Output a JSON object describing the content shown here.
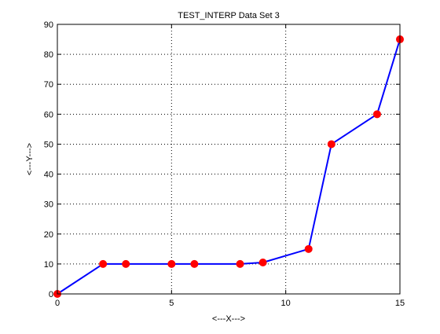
{
  "chart_data": {
    "type": "line",
    "title": "TEST_INTERP Data Set 3",
    "xlabel": "<---X--->",
    "ylabel": "<---Y--->",
    "xlim": [
      0,
      15
    ],
    "ylim": [
      0,
      90
    ],
    "xticks": [
      0,
      5,
      10,
      15
    ],
    "yticks": [
      0,
      10,
      20,
      30,
      40,
      50,
      60,
      70,
      80,
      90
    ],
    "grid": true,
    "series": [
      {
        "x": [
          0,
          2,
          3,
          5,
          6,
          8,
          9,
          11,
          12,
          14,
          15
        ],
        "y": [
          0,
          10,
          10,
          10,
          10,
          10,
          10.5,
          15,
          50,
          60,
          85
        ],
        "line_color": "#0000ff",
        "marker_color": "#ff0000"
      }
    ]
  }
}
